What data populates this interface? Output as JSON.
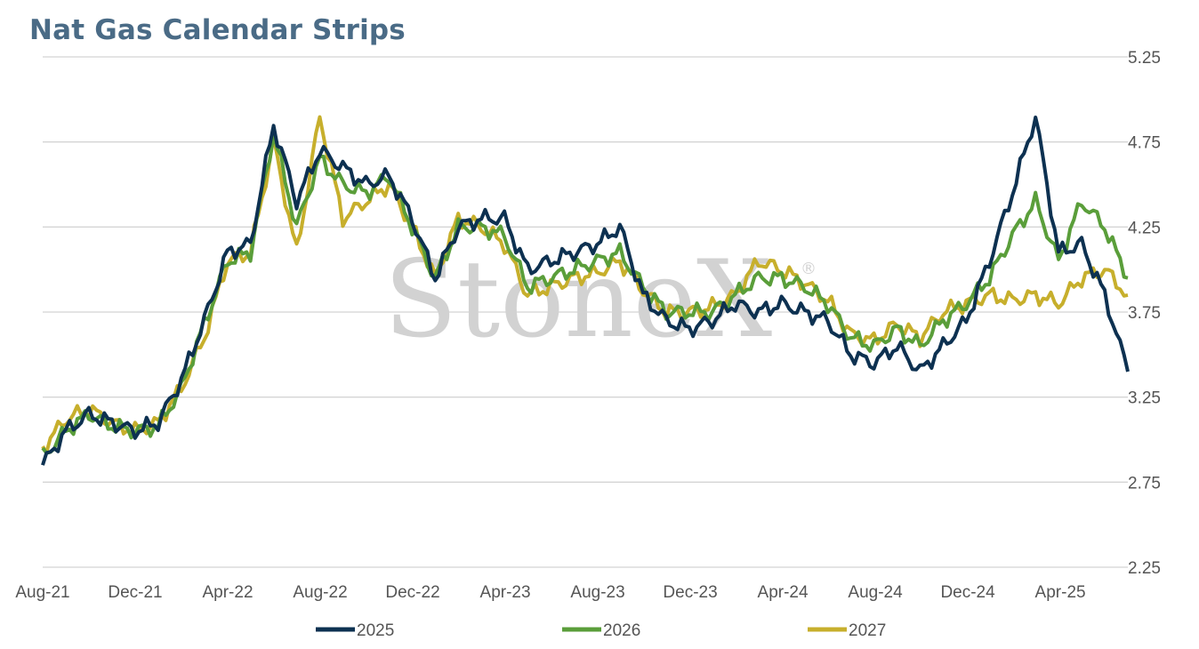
{
  "chart_data": {
    "type": "line",
    "title": "Nat Gas Calendar Strips",
    "xlabel": "",
    "ylabel": "",
    "x_tick_labels": [
      "Aug-21",
      "Dec-21",
      "Apr-22",
      "Aug-22",
      "Dec-22",
      "Apr-23",
      "Aug-23",
      "Dec-23",
      "Apr-24",
      "Aug-24",
      "Dec-24",
      "Apr-25"
    ],
    "y_ticks": [
      2.25,
      2.75,
      3.25,
      3.75,
      4.25,
      4.75,
      5.25
    ],
    "ylim": [
      2.25,
      5.25
    ],
    "y_axis_position": "right",
    "grid": "horizontal",
    "legend": "bottom",
    "watermark": "StoneX",
    "watermark_mark": "®",
    "x": [
      "2021-08",
      "2021-09",
      "2021-10",
      "2021-11",
      "2021-12",
      "2022-01",
      "2022-02",
      "2022-03",
      "2022-04",
      "2022-05",
      "2022-06",
      "2022-07",
      "2022-08",
      "2022-09",
      "2022-10",
      "2022-11",
      "2022-12",
      "2023-01",
      "2023-02",
      "2023-03",
      "2023-04",
      "2023-05",
      "2023-06",
      "2023-07",
      "2023-08",
      "2023-09",
      "2023-10",
      "2023-11",
      "2023-12",
      "2024-01",
      "2024-02",
      "2024-03",
      "2024-04",
      "2024-05",
      "2024-06",
      "2024-07",
      "2024-08",
      "2024-09",
      "2024-10",
      "2024-11",
      "2024-12",
      "2025-01",
      "2025-02",
      "2025-03",
      "2025-04",
      "2025-05",
      "2025-06",
      "2025-07"
    ],
    "series": [
      {
        "name": "2025",
        "color": "#0d3151",
        "values": [
          2.85,
          3.05,
          3.15,
          3.1,
          3.05,
          3.1,
          3.35,
          3.7,
          4.1,
          4.15,
          4.85,
          4.4,
          4.7,
          4.6,
          4.5,
          4.55,
          4.3,
          3.95,
          4.25,
          4.3,
          4.3,
          4.0,
          4.05,
          4.1,
          4.15,
          4.25,
          3.85,
          3.7,
          3.65,
          3.7,
          3.8,
          3.75,
          3.8,
          3.75,
          3.7,
          3.5,
          3.45,
          3.55,
          3.4,
          3.55,
          3.7,
          4.05,
          4.45,
          4.9,
          4.1,
          4.15,
          3.85,
          3.4
        ]
      },
      {
        "name": "2026",
        "color": "#5a9e3a",
        "values": [
          2.9,
          3.05,
          3.15,
          3.08,
          3.05,
          3.08,
          3.3,
          3.68,
          4.05,
          4.1,
          4.8,
          4.25,
          4.65,
          4.5,
          4.45,
          4.55,
          4.25,
          3.95,
          4.25,
          4.25,
          4.2,
          3.9,
          3.95,
          4.0,
          4.05,
          4.1,
          3.9,
          3.75,
          3.75,
          3.75,
          3.85,
          3.95,
          3.95,
          3.9,
          3.8,
          3.6,
          3.55,
          3.65,
          3.55,
          3.7,
          3.8,
          3.95,
          4.2,
          4.4,
          4.05,
          4.4,
          4.25,
          3.95
        ]
      },
      {
        "name": "2027",
        "color": "#c7af2c",
        "values": [
          2.95,
          3.12,
          3.18,
          3.1,
          3.05,
          3.1,
          3.3,
          3.6,
          4.05,
          4.1,
          4.75,
          4.1,
          4.9,
          4.3,
          4.4,
          4.5,
          4.25,
          3.95,
          4.3,
          4.25,
          4.15,
          3.85,
          3.9,
          3.95,
          3.98,
          4.05,
          3.88,
          3.75,
          3.75,
          3.78,
          3.85,
          4.05,
          4.0,
          3.92,
          3.82,
          3.62,
          3.58,
          3.68,
          3.6,
          3.75,
          3.8,
          3.85,
          3.82,
          3.85,
          3.8,
          3.95,
          4.0,
          3.85
        ]
      }
    ]
  }
}
